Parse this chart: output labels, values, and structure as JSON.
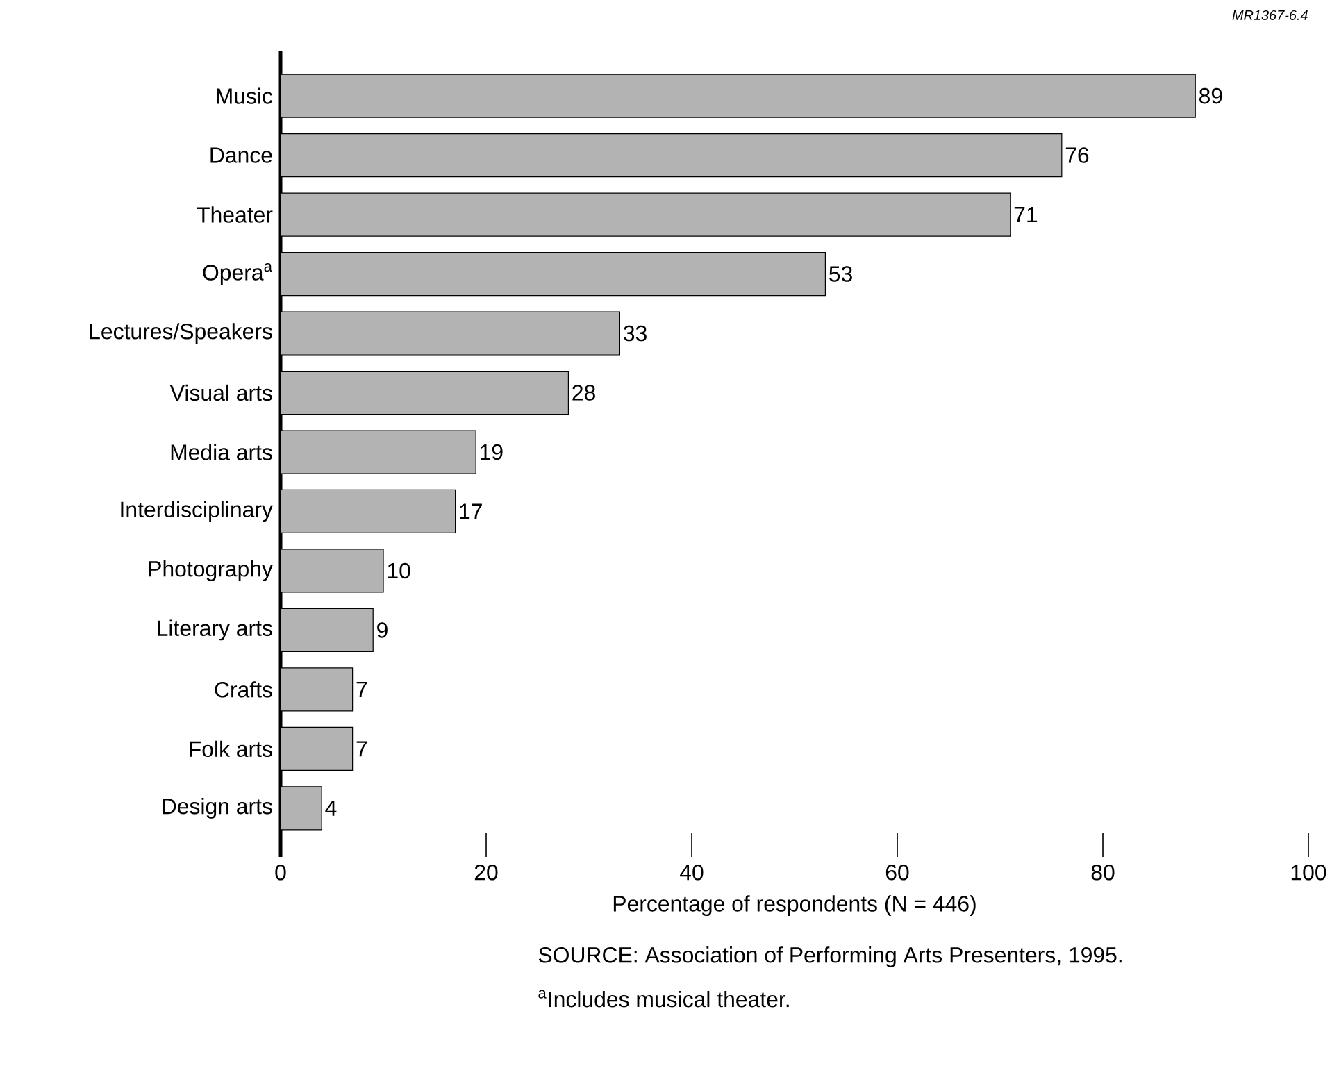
{
  "chart_data": {
    "type": "bar",
    "orientation": "horizontal",
    "categories": [
      "Music",
      "Dance",
      "Theater",
      "Opera$^{a}$",
      "Lectures/Speakers",
      "Visual arts",
      "Media arts",
      "Interdisciplinary",
      "Photography",
      "Literary arts",
      "Crafts",
      "Folk arts",
      "Design arts"
    ],
    "values": [
      89,
      76,
      71,
      53,
      33,
      28,
      19,
      17,
      10,
      9,
      7,
      7,
      4
    ],
    "color": "#b3b3b3",
    "xlim": [
      0,
      100
    ],
    "xticks": [
      0,
      20,
      40,
      60,
      80,
      100
    ],
    "xlabel": "Percentage of respondents (N = 446)",
    "data_labels": true,
    "annotations": [
      "MR1367-6.4",
      "SOURCE:  Association of Performing Arts Presenters, 1995.",
      "$^{a}$Includes musical theater."
    ]
  }
}
